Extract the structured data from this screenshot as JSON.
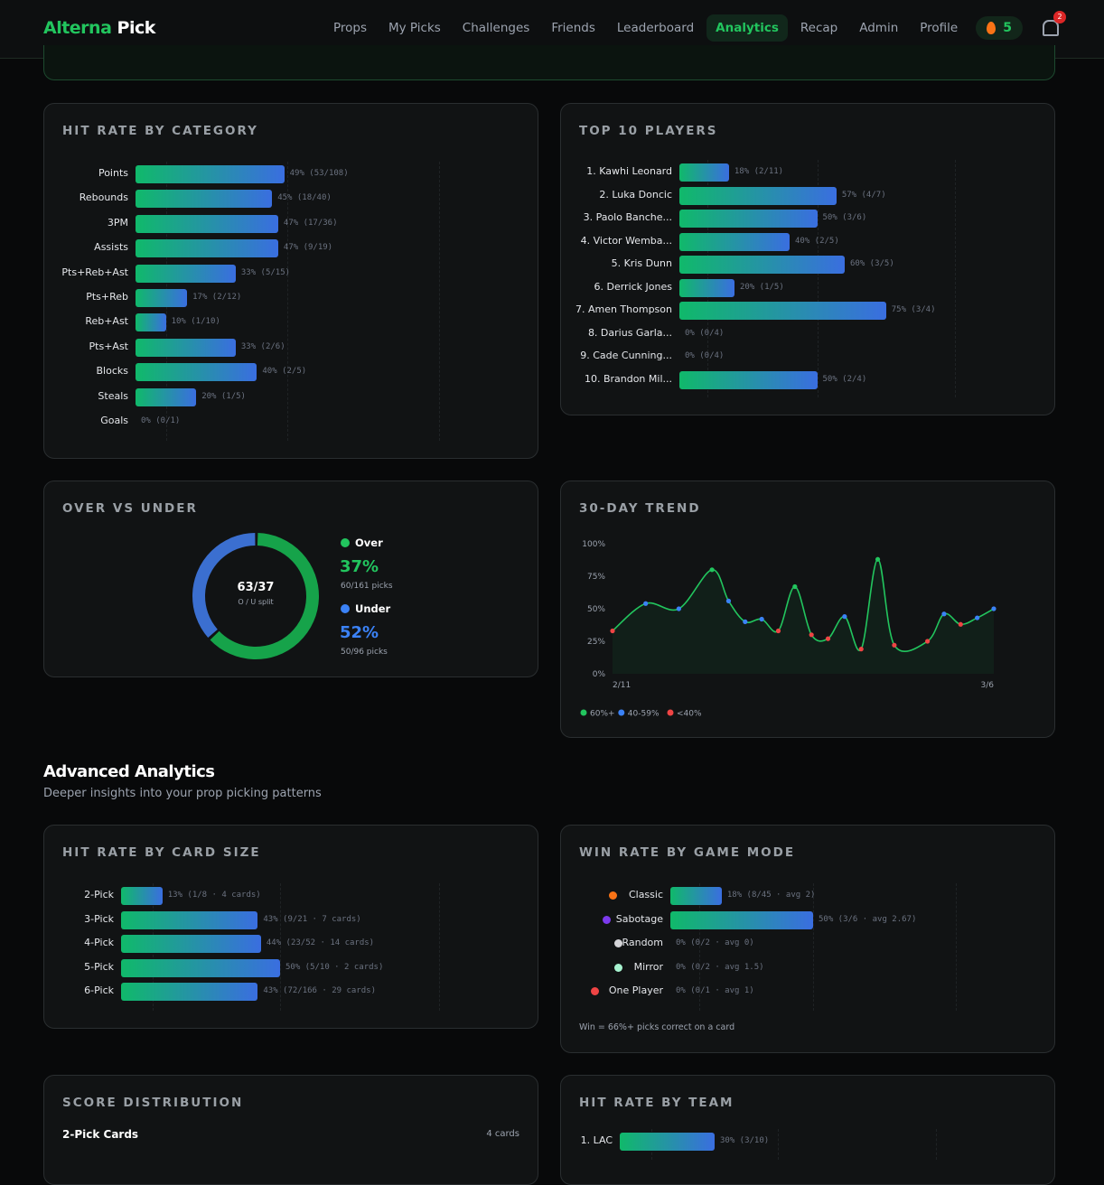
{
  "nav": {
    "brand": [
      "Alterna",
      "Pick"
    ],
    "links": [
      "Props",
      "My Picks",
      "Challenges",
      "Friends",
      "Leaderboard",
      "Analytics",
      "Recap",
      "Admin",
      "Profile"
    ],
    "active": 5,
    "streak": "5",
    "notifications": "2"
  },
  "category": {
    "title": "HIT RATE BY CATEGORY",
    "rows": [
      {
        "label": "Points",
        "pct": 49,
        "text": "49% (53/108)"
      },
      {
        "label": "Rebounds",
        "pct": 45,
        "text": "45% (18/40)"
      },
      {
        "label": "3PM",
        "pct": 47,
        "text": "47% (17/36)"
      },
      {
        "label": "Assists",
        "pct": 47,
        "text": "47% (9/19)"
      },
      {
        "label": "Pts+Reb+Ast",
        "pct": 33,
        "text": "33% (5/15)"
      },
      {
        "label": "Pts+Reb",
        "pct": 17,
        "text": "17% (2/12)"
      },
      {
        "label": "Reb+Ast",
        "pct": 10,
        "text": "10% (1/10)"
      },
      {
        "label": "Pts+Ast",
        "pct": 33,
        "text": "33% (2/6)"
      },
      {
        "label": "Blocks",
        "pct": 40,
        "text": "40% (2/5)"
      },
      {
        "label": "Steals",
        "pct": 20,
        "text": "20% (1/5)"
      },
      {
        "label": "Goals",
        "pct": 0,
        "text": "0% (0/1)"
      }
    ]
  },
  "players": {
    "title": "TOP 10 PLAYERS",
    "rows": [
      {
        "label": "1. Kawhi Leonard",
        "pct": 18,
        "text": "18% (2/11)"
      },
      {
        "label": "2. Luka Doncic",
        "pct": 57,
        "text": "57% (4/7)"
      },
      {
        "label": "3. Paolo Banche...",
        "pct": 50,
        "text": "50% (3/6)"
      },
      {
        "label": "4. Victor Wemba...",
        "pct": 40,
        "text": "40% (2/5)"
      },
      {
        "label": "5. Kris Dunn",
        "pct": 60,
        "text": "60% (3/5)"
      },
      {
        "label": "6. Derrick Jones",
        "pct": 20,
        "text": "20% (1/5)"
      },
      {
        "label": "7. Amen Thompson",
        "pct": 75,
        "text": "75% (3/4)"
      },
      {
        "label": "8. Darius Garla...",
        "pct": 0,
        "text": "0% (0/4)"
      },
      {
        "label": "9. Cade Cunning...",
        "pct": 0,
        "text": "0% (0/4)"
      },
      {
        "label": "10. Brandon Mil...",
        "pct": 50,
        "text": "50% (2/4)"
      }
    ]
  },
  "over_under": {
    "title": "OVER VS UNDER",
    "center": "63/37",
    "center_sub": "O / U split",
    "split": [
      63,
      37
    ],
    "sides": [
      {
        "name": "Over",
        "pct_text": "37%",
        "picks": "60/161 picks",
        "color": "#22c55e"
      },
      {
        "name": "Under",
        "pct_text": "52%",
        "picks": "50/96 picks",
        "color": "#3b82f6"
      }
    ]
  },
  "trend": {
    "title": "30-DAY TREND",
    "type": "line",
    "x": [
      0,
      2,
      4,
      6,
      7,
      8,
      9,
      10,
      11,
      12,
      13,
      14,
      15,
      16,
      17,
      19,
      20,
      21,
      22,
      23
    ],
    "values": [
      33,
      54,
      50,
      80,
      56,
      40,
      42,
      33,
      67,
      30,
      27,
      44,
      19,
      88,
      22,
      25,
      46,
      38,
      43,
      50
    ],
    "xlim": [
      0,
      23
    ],
    "xticks": [
      {
        "value": 0,
        "label": "2/11"
      },
      {
        "value": 23,
        "label": "3/6"
      }
    ],
    "ylim": [
      0,
      100
    ],
    "yticks": [
      {
        "value": 0,
        "label": "0%"
      },
      {
        "value": 25,
        "label": "25%"
      },
      {
        "value": 50,
        "label": "50%"
      },
      {
        "value": 75,
        "label": "75%"
      },
      {
        "value": 100,
        "label": "100%"
      }
    ],
    "color": "#22c55e",
    "legend": [
      {
        "label": "60%+",
        "color": "#22c55e",
        "min": 60
      },
      {
        "label": "40-59%",
        "color": "#3b82f6",
        "min": 40
      },
      {
        "label": "<40%",
        "color": "#ef4444",
        "min": 0
      }
    ]
  },
  "advanced": {
    "title": "Advanced Analytics",
    "subtitle": "Deeper insights into your prop picking patterns"
  },
  "card_size": {
    "title": "HIT RATE BY CARD SIZE",
    "rows": [
      {
        "label": "2-Pick",
        "pct": 13,
        "text": "13% (1/8 · 4 cards)"
      },
      {
        "label": "3-Pick",
        "pct": 43,
        "text": "43% (9/21 · 7 cards)"
      },
      {
        "label": "4-Pick",
        "pct": 44,
        "text": "44% (23/52 · 14 cards)"
      },
      {
        "label": "5-Pick",
        "pct": 50,
        "text": "50% (5/10 · 2 cards)"
      },
      {
        "label": "6-Pick",
        "pct": 43,
        "text": "43% (72/166 · 29 cards)"
      }
    ]
  },
  "game_mode": {
    "title": "WIN RATE BY GAME MODE",
    "note": "Win = 66%+ picks correct on a card",
    "rows": [
      {
        "label": "Classic",
        "pct": 18,
        "text": "18% (8/45 · avg 2)",
        "icon": "#f97316"
      },
      {
        "label": "Sabotage",
        "pct": 50,
        "text": "50% (3/6 · avg 2.67)",
        "icon": "#7c3aed"
      },
      {
        "label": "Random",
        "pct": 0,
        "text": "0% (0/2 · avg 0)",
        "icon": "#d4d4d8"
      },
      {
        "label": "Mirror",
        "pct": 0,
        "text": "0% (0/2 · avg 1.5)",
        "icon": "#a7f3d0"
      },
      {
        "label": "One Player",
        "pct": 0,
        "text": "0% (0/1 · avg 1)",
        "icon": "#ef4444"
      }
    ]
  },
  "score_dist": {
    "title": "SCORE DISTRIBUTION",
    "group": "2-Pick Cards",
    "count": "4 cards"
  },
  "team": {
    "title": "HIT RATE BY TEAM",
    "rows": [
      {
        "label": "1. LAC",
        "pct": 30,
        "text": "30% (3/10)"
      }
    ]
  }
}
